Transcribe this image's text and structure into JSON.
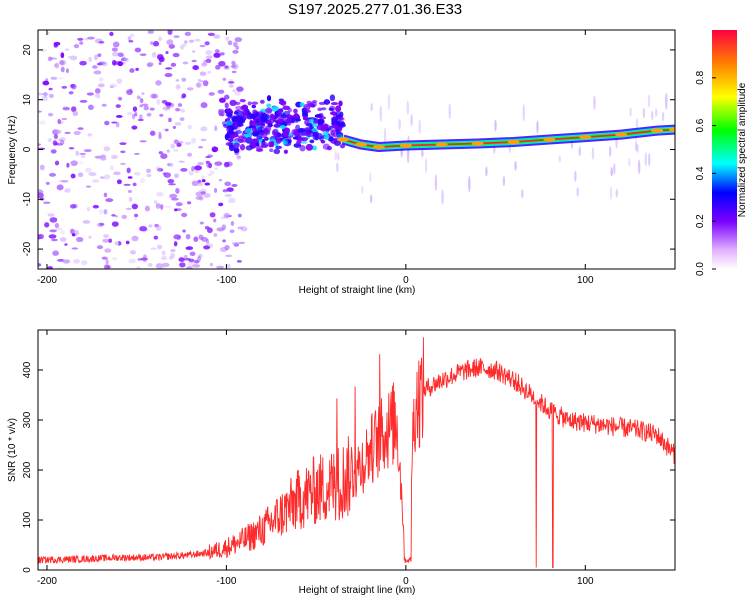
{
  "title": "S197.2025.277.01.36.E33",
  "colors": {
    "snr_line": "#ff2a2a",
    "ridge": "#ff2020",
    "frame": "#000000"
  },
  "chart_data": [
    {
      "type": "heatmap",
      "xlabel": "Height of straight line (km)",
      "ylabel": "Frequency (Hz)",
      "xlim": [
        -205,
        150
      ],
      "ylim": [
        -24,
        24
      ],
      "xticks": [
        -200,
        -100,
        0,
        100
      ],
      "xtick_labels": [
        "-200",
        "-100",
        "0",
        "100"
      ],
      "yticks": [
        -20,
        -10,
        0,
        10,
        20
      ],
      "ytick_labels": [
        "-20",
        "-10",
        "0",
        "10",
        "20"
      ],
      "colorbar": {
        "label": "Normalized spectral amplitude",
        "range": [
          0,
          1
        ],
        "ticks": [
          0,
          0.2,
          0.4,
          0.6,
          0.8
        ],
        "tick_labels": [
          "0.0",
          "0.2",
          "0.4",
          "0.6",
          "0.8"
        ]
      },
      "ridge": {
        "x": [
          -35,
          -25,
          -15,
          0,
          20,
          40,
          60,
          80,
          100,
          120,
          140,
          150
        ],
        "y": [
          2.0,
          1.0,
          0.5,
          0.8,
          1.0,
          1.2,
          1.5,
          2.0,
          2.5,
          3.0,
          3.8,
          4.0
        ]
      },
      "scatter_zone": {
        "x_from": -205,
        "x_to": -100,
        "y_from": -24,
        "y_to": 24
      },
      "cluster_zone": {
        "x_from": -100,
        "x_to": -35,
        "y_center": 5,
        "y_spread": 6
      },
      "grid": false
    },
    {
      "type": "line",
      "xlabel": "Height of straight line (km)",
      "ylabel": "SNR (10 * v/v)",
      "xlim": [
        -205,
        150
      ],
      "ylim": [
        0,
        480
      ],
      "xticks": [
        -200,
        -100,
        0,
        100
      ],
      "xtick_labels": [
        "-200",
        "-100",
        "0",
        "100"
      ],
      "yticks": [
        0,
        100,
        200,
        300,
        400
      ],
      "ytick_labels": [
        "0",
        "100",
        "200",
        "300",
        "400"
      ],
      "series": [
        {
          "x": [
            -205,
            -180,
            -160,
            -140,
            -120,
            -110,
            -100,
            -90,
            -80,
            -70,
            -60,
            -50,
            -40,
            -30,
            -25,
            -20,
            -15,
            -10,
            -5,
            0,
            5,
            10,
            20,
            30,
            40,
            50,
            60,
            70,
            80,
            90,
            100,
            110,
            120,
            130,
            140,
            150
          ],
          "y": [
            20,
            22,
            25,
            25,
            30,
            35,
            45,
            60,
            80,
            110,
            140,
            160,
            170,
            190,
            210,
            240,
            260,
            280,
            300,
            20,
            330,
            360,
            380,
            395,
            405,
            400,
            380,
            350,
            320,
            300,
            295,
            290,
            285,
            280,
            270,
            230
          ]
        }
      ],
      "grid": false
    }
  ]
}
